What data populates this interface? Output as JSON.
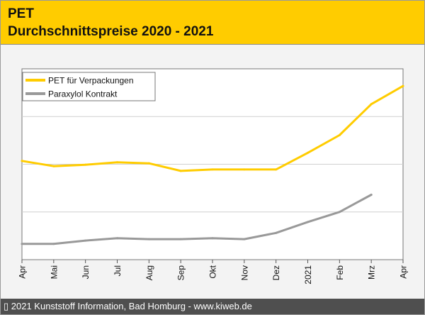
{
  "header": {
    "title": "PET",
    "subtitle": "Durchschnittspreise 2020 - 2021"
  },
  "footer": {
    "copyright": "▯ 2021 Kunststoff Information, Bad Homburg - www.kiweb.de"
  },
  "colors": {
    "header_bg": "#ffcc00",
    "footer_bg": "#4f4f4f",
    "pet": "#ffcc00",
    "paraxylol": "#999999"
  },
  "chart_data": {
    "type": "line",
    "categories": [
      "Apr",
      "Mai",
      "Jun",
      "Jul",
      "Aug",
      "Sep",
      "Okt",
      "Nov",
      "Dez",
      "2021",
      "Feb",
      "Mrz",
      "Apr"
    ],
    "ylim": [
      0,
      4
    ],
    "grid": true,
    "legend_position": "top-left",
    "series": [
      {
        "name": "PET für Verpackungen",
        "color": "#ffcc00",
        "values": [
          2.07,
          1.96,
          1.99,
          2.04,
          2.02,
          1.86,
          1.89,
          1.89,
          1.89,
          2.24,
          2.61,
          3.26,
          3.64
        ]
      },
      {
        "name": "Paraxylol Kontrakt",
        "color": "#999999",
        "values": [
          0.33,
          0.33,
          0.4,
          0.45,
          0.43,
          0.43,
          0.45,
          0.43,
          0.56,
          0.79,
          1.0,
          1.36,
          null
        ]
      }
    ]
  }
}
